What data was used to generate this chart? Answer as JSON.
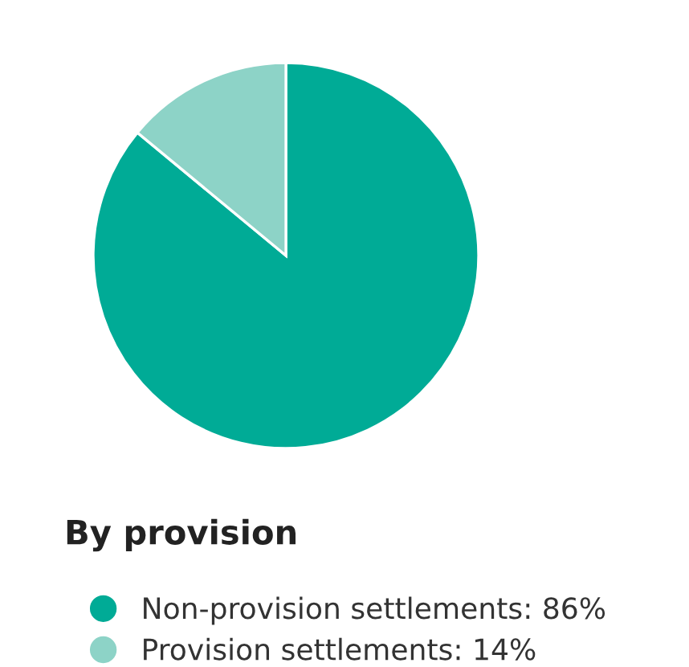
{
  "chart_data": {
    "type": "pie",
    "title": "By provision",
    "categories": [
      "Non-provision settlements: 86%",
      "Provision settlements: 14%"
    ],
    "values": [
      86,
      14
    ],
    "colors": [
      "#00ab96",
      "#8dd3c7"
    ],
    "legend": "bottom"
  }
}
